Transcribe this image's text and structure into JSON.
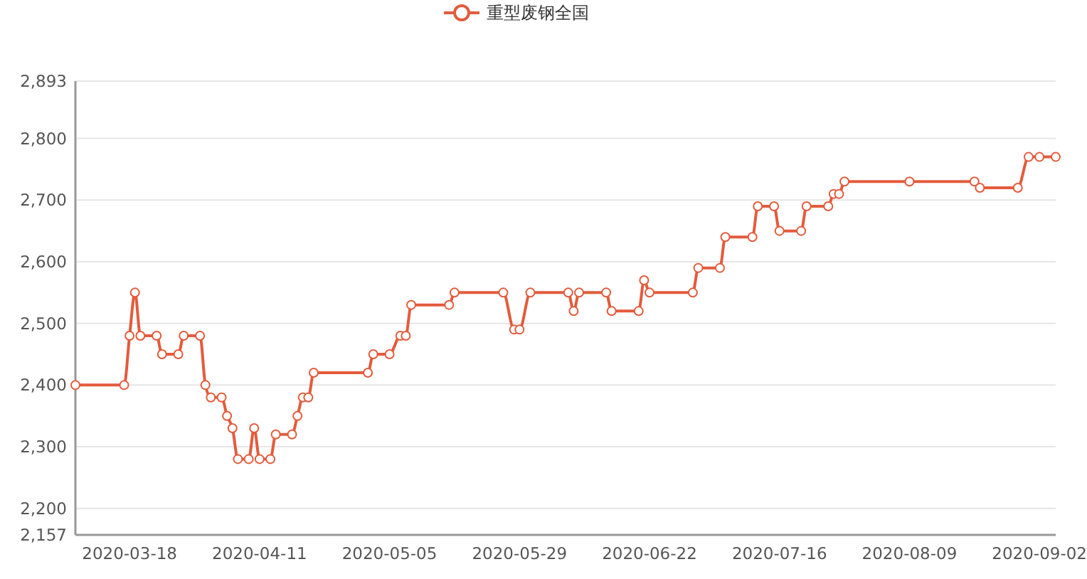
{
  "chart_data": {
    "type": "line",
    "legend": "top",
    "grid": "y",
    "marker": "circle",
    "line_style": "solid",
    "xlim": [
      "2020-03-08",
      "2020-09-05"
    ],
    "xticks": [
      {
        "value": "2020-03-18",
        "label": "2020-03-18"
      },
      {
        "value": "2020-04-11",
        "label": "2020-04-11"
      },
      {
        "value": "2020-05-05",
        "label": "2020-05-05"
      },
      {
        "value": "2020-05-29",
        "label": "2020-05-29"
      },
      {
        "value": "2020-06-22",
        "label": "2020-06-22"
      },
      {
        "value": "2020-07-16",
        "label": "2020-07-16"
      },
      {
        "value": "2020-08-09",
        "label": "2020-08-09"
      },
      {
        "value": "2020-09-02",
        "label": "2020-09-02"
      }
    ],
    "ylim": [
      2157,
      2893
    ],
    "yticks": [
      {
        "value": 2157,
        "label": "2,157"
      },
      {
        "value": 2200,
        "label": "2,200"
      },
      {
        "value": 2300,
        "label": "2,300"
      },
      {
        "value": 2400,
        "label": "2,400"
      },
      {
        "value": 2500,
        "label": "2,500"
      },
      {
        "value": 2600,
        "label": "2,600"
      },
      {
        "value": 2700,
        "label": "2,700"
      },
      {
        "value": 2800,
        "label": "2,800"
      },
      {
        "value": 2893,
        "label": "2,893"
      }
    ],
    "x": [
      "2020-03-08",
      "2020-03-17",
      "2020-03-18",
      "2020-03-19",
      "2020-03-20",
      "2020-03-23",
      "2020-03-24",
      "2020-03-27",
      "2020-03-28",
      "2020-03-31",
      "2020-04-01",
      "2020-04-02",
      "2020-04-04",
      "2020-04-05",
      "2020-04-06",
      "2020-04-07",
      "2020-04-09",
      "2020-04-10",
      "2020-04-11",
      "2020-04-13",
      "2020-04-14",
      "2020-04-17",
      "2020-04-18",
      "2020-04-19",
      "2020-04-20",
      "2020-04-21",
      "2020-05-01",
      "2020-05-02",
      "2020-05-05",
      "2020-05-07",
      "2020-05-08",
      "2020-05-09",
      "2020-05-16",
      "2020-05-17",
      "2020-05-26",
      "2020-05-28",
      "2020-05-29",
      "2020-05-31",
      "2020-06-07",
      "2020-06-08",
      "2020-06-09",
      "2020-06-14",
      "2020-06-15",
      "2020-06-20",
      "2020-06-21",
      "2020-06-22",
      "2020-06-30",
      "2020-07-01",
      "2020-07-05",
      "2020-07-06",
      "2020-07-11",
      "2020-07-12",
      "2020-07-15",
      "2020-07-16",
      "2020-07-20",
      "2020-07-21",
      "2020-07-25",
      "2020-07-26",
      "2020-07-27",
      "2020-07-28",
      "2020-08-09",
      "2020-08-21",
      "2020-08-22",
      "2020-08-29",
      "2020-08-31",
      "2020-09-02",
      "2020-09-05"
    ],
    "series": [
      {
        "name": "重型废钢全国",
        "color": "#e35b3c",
        "values": [
          2400,
          2400,
          2480,
          2550,
          2480,
          2480,
          2450,
          2450,
          2480,
          2480,
          2400,
          2380,
          2380,
          2350,
          2330,
          2280,
          2280,
          2330,
          2280,
          2280,
          2320,
          2320,
          2350,
          2380,
          2380,
          2420,
          2420,
          2450,
          2450,
          2480,
          2480,
          2530,
          2530,
          2550,
          2550,
          2490,
          2490,
          2550,
          2550,
          2520,
          2550,
          2550,
          2520,
          2520,
          2570,
          2550,
          2550,
          2590,
          2590,
          2640,
          2640,
          2690,
          2690,
          2650,
          2650,
          2690,
          2690,
          2710,
          2710,
          2730,
          2730,
          2730,
          2720,
          2720,
          2770,
          2770,
          2770
        ]
      }
    ]
  }
}
